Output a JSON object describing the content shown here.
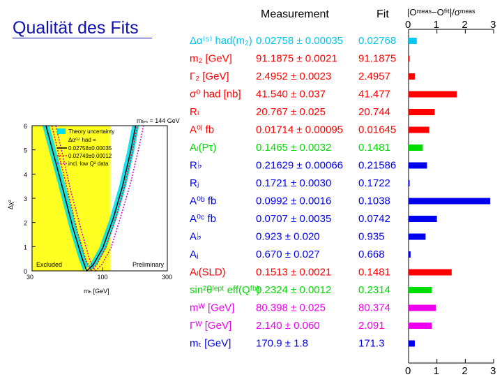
{
  "slide": {
    "title": "Qualität des Fits"
  },
  "pull_chart": {
    "headers": {
      "measurement": "Measurement",
      "fit": "Fit",
      "pull": "|Oᵐᵉᵃˢ−Oᶠⁱᵗ|/σᵐᵉᵃˢ"
    },
    "axis_ticks": [
      "0",
      "1",
      "2",
      "3"
    ]
  },
  "chi2_plot": {
    "legend": [
      "Theory uncertainty",
      "Δα⁽⁵⁾ had =",
      "0.02758±0.00035",
      "0.02749±0.00012",
      "incl. low Q² data"
    ],
    "annotations": {
      "excluded": "Excluded",
      "preliminary": "Preliminary",
      "mlimit": "mₗᵢₘ = 144 GeV"
    }
  },
  "chart_data": [
    {
      "type": "bar",
      "orientation": "horizontal",
      "title": "",
      "xlabel": "|O^meas − O^fit| / σ^meas",
      "xlim": [
        0,
        3
      ],
      "xticks": [
        "0",
        "1",
        "2",
        "3"
      ],
      "rows": [
        {
          "observable": "Δα⁽⁵⁾ had(m₂)",
          "measurement": "0.02758 ± 0.00035",
          "fit": "0.02768",
          "pull": 0.29,
          "color": "#00c8f0"
        },
        {
          "observable": "m₂ [GeV]",
          "measurement": "91.1875 ± 0.0021",
          "fit": "91.1875",
          "pull": 0.02,
          "color": "#ff0000"
        },
        {
          "observable": "Γ₂ [GeV]",
          "measurement": "2.4952 ± 0.0023",
          "fit": "2.4957",
          "pull": 0.22,
          "color": "#ff0000"
        },
        {
          "observable": "σ⁰ had [nb]",
          "measurement": "41.540 ± 0.037",
          "fit": "41.477",
          "pull": 1.7,
          "color": "#ff0000"
        },
        {
          "observable": "Rₗ",
          "measurement": "20.767 ± 0.025",
          "fit": "20.744",
          "pull": 0.92,
          "color": "#ff0000"
        },
        {
          "observable": "A⁰ˡ fb",
          "measurement": "0.01714 ± 0.00095",
          "fit": "0.01645",
          "pull": 0.73,
          "color": "#ff0000"
        },
        {
          "observable": "Aₗ(Pτ)",
          "measurement": "0.1465 ± 0.0032",
          "fit": "0.1481",
          "pull": 0.5,
          "color": "#00dd00"
        },
        {
          "observable": "R♭",
          "measurement": "0.21629 ± 0.00066",
          "fit": "0.21586",
          "pull": 0.65,
          "color": "#0000ee"
        },
        {
          "observable": "Rⱼ",
          "measurement": "0.1721 ± 0.0030",
          "fit": "0.1722",
          "pull": 0.03,
          "color": "#0000ee"
        },
        {
          "observable": "A⁰ᵇ fb",
          "measurement": "0.0992 ± 0.0016",
          "fit": "0.1038",
          "pull": 2.88,
          "color": "#0000ee"
        },
        {
          "observable": "A⁰ᶜ fb",
          "measurement": "0.0707 ± 0.0035",
          "fit": "0.0742",
          "pull": 1.0,
          "color": "#0000ee"
        },
        {
          "observable": "A♭",
          "measurement": "0.923 ± 0.020",
          "fit": "0.935",
          "pull": 0.6,
          "color": "#0000ee"
        },
        {
          "observable": "Aⱼ",
          "measurement": "0.670 ± 0.027",
          "fit": "0.668",
          "pull": 0.07,
          "color": "#0000ee"
        },
        {
          "observable": "Aₗ(SLD)",
          "measurement": "0.1513 ± 0.0021",
          "fit": "0.1481",
          "pull": 1.52,
          "color": "#ff0000"
        },
        {
          "observable": "sin²θˡᵉᵖᵗ eff(Qᶠᵇ)",
          "measurement": "0.2324 ± 0.0012",
          "fit": "0.2314",
          "pull": 0.82,
          "color": "#00dd00"
        },
        {
          "observable": "mᵂ [GeV]",
          "measurement": "80.398 ± 0.025",
          "fit": "80.374",
          "pull": 0.96,
          "color": "#ee00ee"
        },
        {
          "observable": "Γᵂ [GeV]",
          "measurement": "2.140 ± 0.060",
          "fit": "2.091",
          "pull": 0.82,
          "color": "#ee00ee"
        },
        {
          "observable": "mₜ [GeV]",
          "measurement": "170.9 ± 1.8",
          "fit": "171.3",
          "pull": 0.22,
          "color": "#0000ee"
        }
      ]
    },
    {
      "type": "line",
      "title": "",
      "xlabel": "mₕ [GeV]",
      "ylabel": "Δχ²",
      "xscale": "log",
      "xlim": [
        30,
        300
      ],
      "ylim": [
        0,
        6
      ],
      "xticks": [
        "30",
        "100",
        "300"
      ],
      "yticks": [
        "0",
        "1",
        "2",
        "3",
        "4",
        "5",
        "6"
      ],
      "excluded_below": 114,
      "series": [
        {
          "name": "0.02758±0.00035",
          "style": "solid",
          "color": "#000000",
          "x": [
            38,
            50,
            60,
            70,
            76,
            85,
            100,
            120,
            140,
            160,
            175
          ],
          "y": [
            6.0,
            3.5,
            1.8,
            0.55,
            0.0,
            0.25,
            0.95,
            2.2,
            3.5,
            4.9,
            6.0
          ]
        },
        {
          "name": "0.02749±0.00012",
          "style": "dotted",
          "color": "#ff0000",
          "x": [
            42,
            55,
            65,
            75,
            82,
            90,
            105,
            125,
            145,
            165,
            180
          ],
          "y": [
            6.0,
            3.3,
            1.6,
            0.45,
            0.0,
            0.25,
            0.95,
            2.2,
            3.5,
            4.9,
            6.0
          ]
        },
        {
          "name": "incl. low Q² data",
          "style": "dotted",
          "color": "#cc00cc",
          "x": [
            45,
            58,
            70,
            80,
            88,
            98,
            115,
            135,
            160,
            185,
            200
          ],
          "y": [
            6.0,
            3.3,
            1.6,
            0.45,
            0.0,
            0.25,
            0.95,
            2.2,
            3.6,
            5.1,
            6.0
          ]
        }
      ]
    }
  ]
}
